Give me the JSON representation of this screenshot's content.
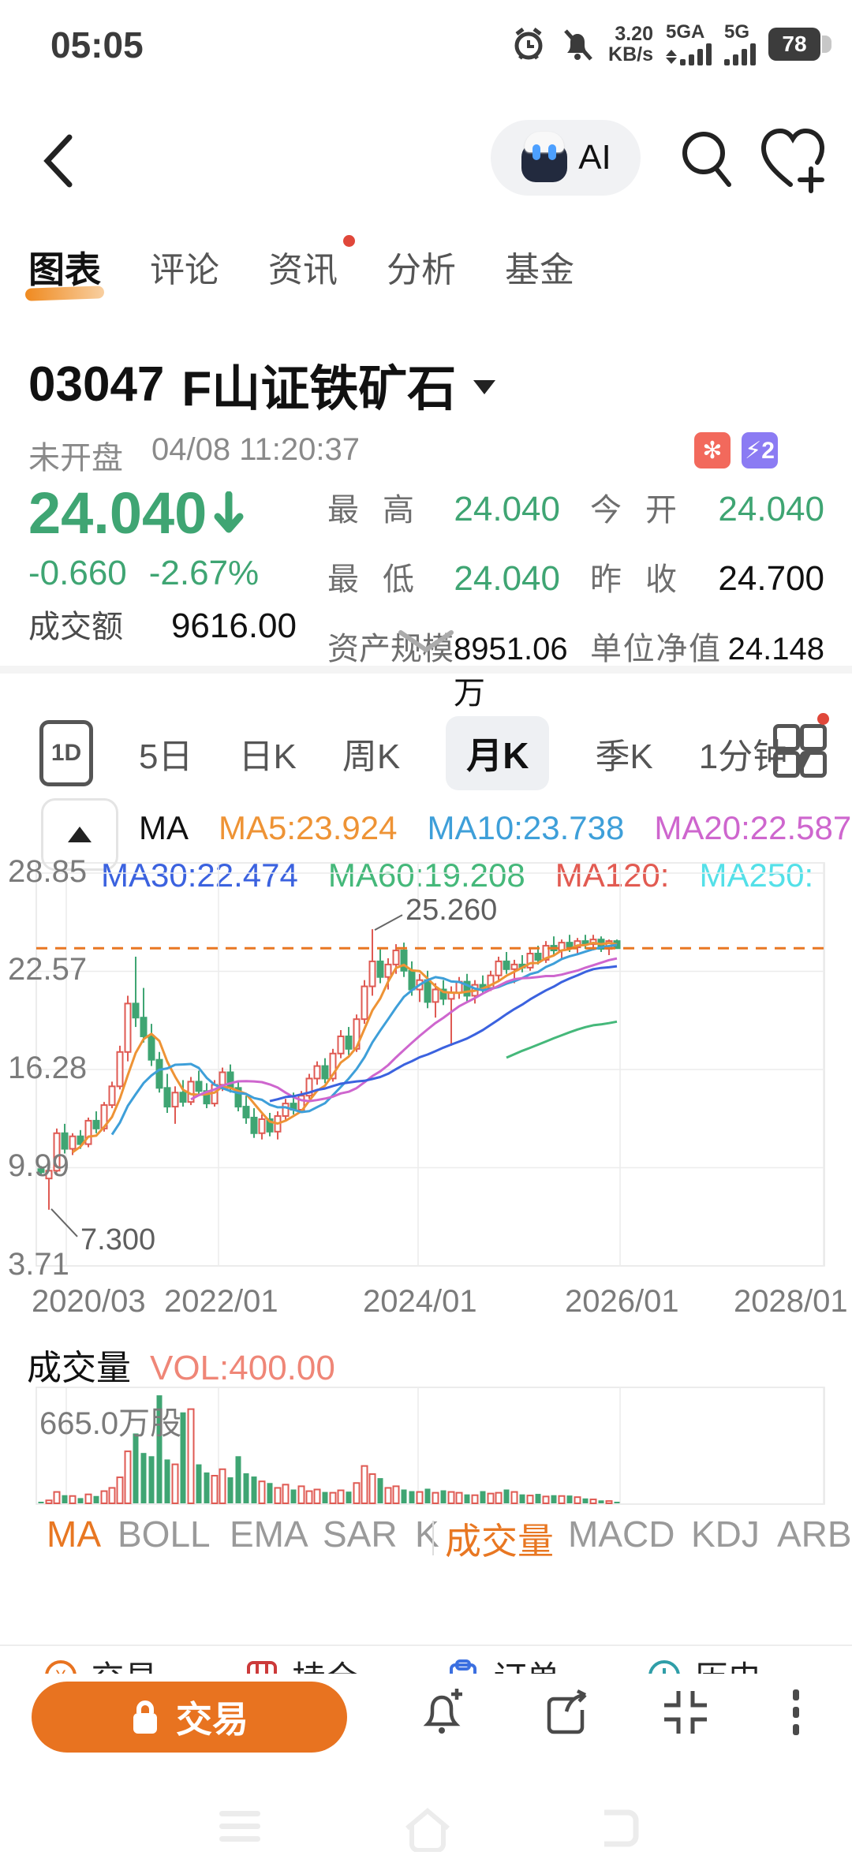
{
  "status_bar": {
    "time": "05:05",
    "net_speed_value": "3.20",
    "net_speed_unit": "KB/s",
    "sim1": "5GA",
    "sim2": "5G",
    "battery": "78"
  },
  "nav": {
    "ai_label": "AI"
  },
  "tabs": [
    {
      "label": "图表",
      "active": true,
      "dot": false
    },
    {
      "label": "评论",
      "active": false,
      "dot": false
    },
    {
      "label": "资讯",
      "active": false,
      "dot": true
    },
    {
      "label": "分析",
      "active": false,
      "dot": false
    },
    {
      "label": "基金",
      "active": false,
      "dot": false
    }
  ],
  "stock": {
    "code": "03047",
    "name": "F山证铁矿石",
    "market_status": "未开盘",
    "quote_time": "04/08 11:20:37",
    "price": "24.040",
    "direction": "down",
    "change": "-0.660",
    "change_pct": "-2.67%",
    "turnover_label": "成交额",
    "turnover_value": "9616.00",
    "mid_stats": [
      {
        "label": "最高",
        "value": "24.040",
        "color": "green"
      },
      {
        "label": "最低",
        "value": "24.040",
        "color": "green"
      },
      {
        "label": "资产规模",
        "value": "8951.06万",
        "color": "black"
      }
    ],
    "right_stats": [
      {
        "label": "今开",
        "value": "24.040",
        "color": "green"
      },
      {
        "label": "昨收",
        "value": "24.700",
        "color": "black"
      },
      {
        "label": "单位净值",
        "value": "24.148",
        "color": "black"
      }
    ],
    "badges": [
      {
        "name": "hk-market-badge",
        "glyph": "✻",
        "color": "#f2695c"
      },
      {
        "name": "level2-quote-badge",
        "glyph": "⚡2",
        "color": "#8b7bf3"
      }
    ]
  },
  "periods": {
    "one_d": "1D",
    "items": [
      {
        "label": "5日",
        "active": false
      },
      {
        "label": "日K",
        "active": false
      },
      {
        "label": "周K",
        "active": false
      },
      {
        "label": "月K",
        "active": true
      },
      {
        "label": "季K",
        "active": false
      }
    ],
    "minute_label": "1分钟"
  },
  "ma_legend": {
    "row1": [
      {
        "text": "MA",
        "color": "#111111"
      },
      {
        "text": "MA5:23.924",
        "color": "#ee9335"
      },
      {
        "text": "MA10:23.738",
        "color": "#3e9fd9"
      },
      {
        "text": "MA20:22.587",
        "color": "#ce66ce"
      }
    ],
    "row2": [
      {
        "text": "MA30:22.474",
        "color": "#3b62df"
      },
      {
        "text": "MA60:19.208",
        "color": "#45b87a"
      },
      {
        "text": "MA120:",
        "color": "#e25b52"
      },
      {
        "text": "MA250:",
        "color": "#54e0e8"
      }
    ]
  },
  "chart_data": {
    "type": "candlestick",
    "title": "03047 F山证铁矿石 月K",
    "y_ticks": [
      "28.85",
      "22.57",
      "16.28",
      "9.99",
      "3.71"
    ],
    "y_range": [
      3.71,
      28.85
    ],
    "x_ticks": [
      "2020/03",
      "2022/01",
      "2024/01",
      "2026/01",
      "2028/01"
    ],
    "grid": true,
    "dash_price": 24.04,
    "high_annotation": {
      "text": "25.260",
      "index": 42
    },
    "low_annotation": {
      "text": "7.300",
      "index": 1
    },
    "colors": {
      "up": "#df5a53",
      "down": "#3fa573",
      "ma5": "#ee9335",
      "ma10": "#3e9fd9",
      "ma20": "#ce66ce",
      "ma30": "#3b62df",
      "ma60": "#45b87a",
      "dash": "#e87722"
    },
    "ma_periods": [
      5,
      10,
      20,
      30,
      60
    ],
    "candles": [
      [
        9.9,
        10.1,
        9.5,
        9.7
      ],
      [
        9.3,
        9.9,
        7.3,
        9.8
      ],
      [
        9.8,
        12.5,
        9.7,
        12.2
      ],
      [
        12.2,
        12.8,
        10.9,
        11.2
      ],
      [
        11.2,
        12.2,
        10.8,
        12.0
      ],
      [
        12.0,
        12.4,
        11.2,
        11.5
      ],
      [
        11.5,
        13.2,
        11.3,
        13.0
      ],
      [
        13.0,
        13.6,
        12.2,
        12.5
      ],
      [
        12.5,
        14.2,
        12.3,
        14.0
      ],
      [
        14.0,
        15.5,
        13.8,
        15.2
      ],
      [
        15.2,
        17.8,
        15.0,
        17.4
      ],
      [
        17.4,
        21.0,
        16.8,
        20.5
      ],
      [
        20.5,
        23.5,
        19.0,
        19.6
      ],
      [
        19.6,
        21.5,
        18.0,
        18.4
      ],
      [
        18.4,
        19.2,
        16.5,
        16.9
      ],
      [
        16.9,
        17.4,
        14.8,
        15.1
      ],
      [
        15.1,
        16.0,
        13.5,
        13.9
      ],
      [
        13.9,
        15.2,
        12.8,
        14.8
      ],
      [
        14.8,
        15.6,
        13.9,
        14.2
      ],
      [
        14.2,
        15.8,
        14.0,
        15.5
      ],
      [
        15.5,
        16.2,
        14.6,
        14.9
      ],
      [
        14.9,
        15.4,
        13.8,
        14.1
      ],
      [
        14.1,
        15.6,
        13.9,
        15.3
      ],
      [
        15.3,
        16.4,
        14.9,
        16.1
      ],
      [
        16.1,
        16.6,
        14.8,
        15.1
      ],
      [
        15.1,
        15.5,
        13.6,
        13.9
      ],
      [
        13.9,
        14.6,
        12.8,
        13.2
      ],
      [
        13.2,
        13.8,
        11.9,
        12.2
      ],
      [
        12.2,
        13.4,
        11.8,
        13.1
      ],
      [
        13.1,
        13.5,
        12.0,
        12.3
      ],
      [
        12.3,
        13.6,
        11.8,
        13.3
      ],
      [
        13.3,
        14.4,
        13.0,
        14.1
      ],
      [
        14.1,
        14.8,
        13.4,
        13.7
      ],
      [
        13.7,
        14.9,
        13.5,
        14.6
      ],
      [
        14.6,
        16.0,
        14.4,
        15.7
      ],
      [
        15.7,
        16.8,
        15.3,
        16.5
      ],
      [
        16.5,
        17.0,
        15.4,
        15.7
      ],
      [
        15.7,
        17.6,
        15.5,
        17.3
      ],
      [
        17.3,
        18.8,
        17.0,
        18.4
      ],
      [
        18.4,
        19.0,
        17.2,
        17.6
      ],
      [
        17.6,
        19.8,
        17.4,
        19.5
      ],
      [
        19.5,
        22.0,
        19.2,
        21.6
      ],
      [
        21.6,
        25.26,
        21.0,
        23.2
      ],
      [
        23.2,
        24.0,
        21.8,
        22.2
      ],
      [
        22.2,
        23.4,
        21.4,
        23.0
      ],
      [
        23.0,
        24.3,
        22.4,
        23.9
      ],
      [
        23.9,
        24.4,
        22.2,
        22.6
      ],
      [
        22.6,
        23.2,
        21.0,
        21.4
      ],
      [
        21.4,
        22.4,
        20.6,
        22.0
      ],
      [
        22.0,
        22.6,
        20.2,
        20.6
      ],
      [
        20.6,
        21.8,
        19.6,
        21.4
      ],
      [
        21.4,
        22.0,
        20.4,
        20.8
      ],
      [
        20.8,
        21.6,
        17.8,
        21.2
      ],
      [
        21.2,
        22.2,
        20.8,
        21.9
      ],
      [
        21.9,
        22.4,
        20.6,
        21.0
      ],
      [
        21.0,
        22.0,
        20.5,
        21.7
      ],
      [
        21.7,
        22.3,
        21.2,
        21.5
      ],
      [
        21.5,
        22.6,
        21.3,
        22.3
      ],
      [
        22.3,
        23.5,
        22.0,
        23.2
      ],
      [
        23.2,
        23.8,
        22.4,
        22.7
      ],
      [
        22.7,
        23.3,
        21.8,
        23.0
      ],
      [
        23.0,
        23.6,
        22.5,
        22.8
      ],
      [
        22.8,
        24.0,
        22.6,
        23.7
      ],
      [
        23.7,
        24.2,
        23.0,
        23.3
      ],
      [
        23.3,
        24.5,
        23.1,
        24.2
      ],
      [
        24.2,
        24.8,
        23.6,
        23.9
      ],
      [
        23.9,
        24.6,
        23.4,
        24.4
      ],
      [
        24.4,
        24.9,
        23.8,
        24.1
      ],
      [
        24.1,
        24.7,
        23.7,
        24.5
      ],
      [
        24.5,
        24.9,
        24.0,
        24.3
      ],
      [
        24.3,
        24.9,
        23.9,
        24.6
      ],
      [
        24.6,
        24.8,
        23.8,
        24.0
      ],
      [
        24.0,
        24.6,
        23.6,
        24.5
      ],
      [
        24.5,
        24.6,
        24.0,
        24.04
      ]
    ],
    "volumes": [
      8,
      18,
      70,
      50,
      45,
      32,
      55,
      45,
      75,
      95,
      160,
      320,
      430,
      310,
      290,
      665,
      270,
      240,
      560,
      580,
      240,
      190,
      170,
      210,
      160,
      290,
      185,
      165,
      135,
      125,
      95,
      115,
      85,
      105,
      75,
      85,
      70,
      65,
      80,
      72,
      125,
      230,
      180,
      155,
      95,
      105,
      85,
      75,
      70,
      90,
      65,
      80,
      70,
      65,
      55,
      50,
      75,
      60,
      65,
      85,
      70,
      55,
      48,
      58,
      42,
      50,
      45,
      48,
      38,
      30,
      24,
      18,
      14,
      1
    ],
    "volume_axis_max": 680,
    "volume_scale_label": "665.0万股"
  },
  "volume_header": {
    "label": "成交量",
    "vol_text": "VOL:400.00"
  },
  "indicator_tabs": {
    "left": [
      {
        "label": "MA",
        "active": true
      },
      {
        "label": "BOLL",
        "active": false
      },
      {
        "label": "EMA",
        "active": false
      },
      {
        "label": "SAR",
        "active": false
      },
      {
        "label": "K",
        "active": false
      }
    ],
    "right": [
      {
        "label": "成交量",
        "active": true
      },
      {
        "label": "MACD",
        "active": false
      },
      {
        "label": "KDJ",
        "active": false
      },
      {
        "label": "ARBR",
        "active": false
      }
    ]
  },
  "quick_actions": [
    {
      "label": "交易",
      "color": "#e87320"
    },
    {
      "label": "持仓",
      "color": "#cc3a3a"
    },
    {
      "label": "订单",
      "color": "#3b6fe0"
    },
    {
      "label": "历史",
      "color": "#2f9ea8"
    }
  ],
  "bottom_bar": {
    "trade_label": "交易"
  }
}
